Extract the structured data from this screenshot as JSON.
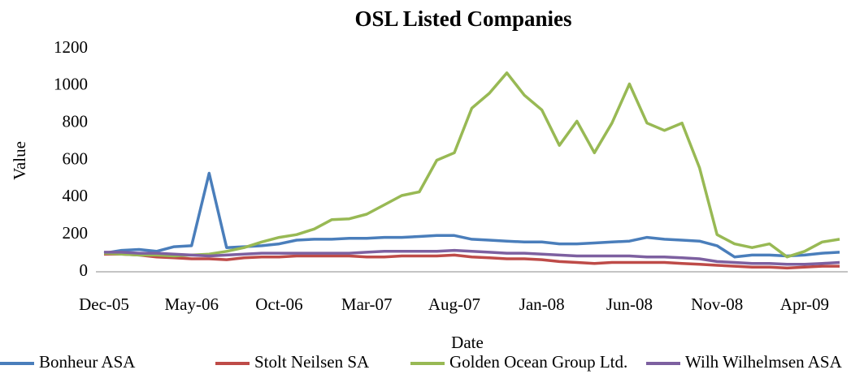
{
  "chart_data": {
    "type": "line",
    "title": "OSL Listed Companies",
    "x_label": "Date",
    "y_label": "Value",
    "categories": [
      "Dec-05",
      null,
      null,
      null,
      null,
      "May-06",
      null,
      null,
      null,
      null,
      "Oct-06",
      null,
      null,
      null,
      null,
      "Mar-07",
      null,
      null,
      null,
      null,
      "Aug-07",
      null,
      null,
      null,
      null,
      "Jan-08",
      null,
      null,
      null,
      null,
      "Jun-08",
      null,
      null,
      null,
      null,
      "Nov-08",
      null,
      null,
      null,
      null,
      "Apr-09",
      null,
      null
    ],
    "ylim": [
      0,
      1200
    ],
    "yticks": [
      0,
      200,
      400,
      600,
      800,
      1000,
      1200
    ],
    "grid": false,
    "legend": "bottom",
    "series": [
      {
        "name": "Bonheur ASA",
        "color": "#4a7ebb",
        "values": [
          100,
          115,
          120,
          110,
          135,
          140,
          530,
          130,
          135,
          140,
          150,
          170,
          175,
          175,
          180,
          180,
          185,
          185,
          190,
          195,
          195,
          175,
          170,
          165,
          160,
          160,
          150,
          150,
          155,
          160,
          165,
          185,
          175,
          170,
          165,
          140,
          80,
          90,
          90,
          85,
          90,
          100,
          105
        ]
      },
      {
        "name": "Stolt Neilsen SA",
        "color": "#be4b48",
        "values": [
          95,
          95,
          90,
          80,
          75,
          70,
          70,
          65,
          75,
          80,
          80,
          85,
          85,
          85,
          85,
          80,
          80,
          85,
          85,
          85,
          90,
          80,
          75,
          70,
          70,
          65,
          55,
          50,
          45,
          50,
          50,
          50,
          50,
          45,
          40,
          35,
          30,
          25,
          25,
          20,
          25,
          30,
          30
        ]
      },
      {
        "name": "Golden Ocean Group Ltd.",
        "color": "#98b954",
        "values": [
          100,
          95,
          90,
          90,
          85,
          90,
          95,
          110,
          130,
          160,
          185,
          200,
          230,
          280,
          285,
          310,
          360,
          410,
          430,
          600,
          640,
          880,
          960,
          1070,
          950,
          870,
          680,
          810,
          640,
          800,
          1010,
          800,
          760,
          800,
          560,
          200,
          150,
          130,
          150,
          80,
          110,
          160,
          175
        ]
      },
      {
        "name": "Wilh Wilhelmsen ASA",
        "color": "#7d60a0",
        "values": [
          105,
          105,
          100,
          100,
          95,
          90,
          85,
          90,
          95,
          100,
          100,
          100,
          100,
          100,
          100,
          105,
          110,
          110,
          110,
          110,
          115,
          110,
          105,
          100,
          100,
          95,
          90,
          85,
          85,
          85,
          85,
          80,
          80,
          75,
          70,
          55,
          50,
          45,
          45,
          40,
          40,
          45,
          50
        ]
      }
    ]
  }
}
